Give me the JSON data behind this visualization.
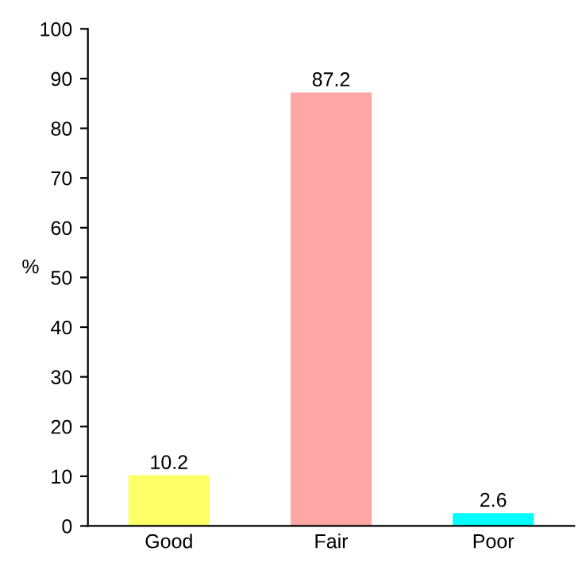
{
  "chart_data": {
    "type": "bar",
    "ylabel": "%",
    "categories": [
      "Good",
      "Fair",
      "Poor"
    ],
    "values": [
      10.2,
      87.2,
      2.6
    ],
    "colors": [
      "#ffff66",
      "#ffa6a6",
      "#00ffff"
    ],
    "ylim": [
      0,
      100
    ],
    "yticks": [
      0,
      10,
      20,
      30,
      40,
      50,
      60,
      70,
      80,
      90,
      100
    ],
    "data_labels": true,
    "grid": false,
    "legend": false
  }
}
